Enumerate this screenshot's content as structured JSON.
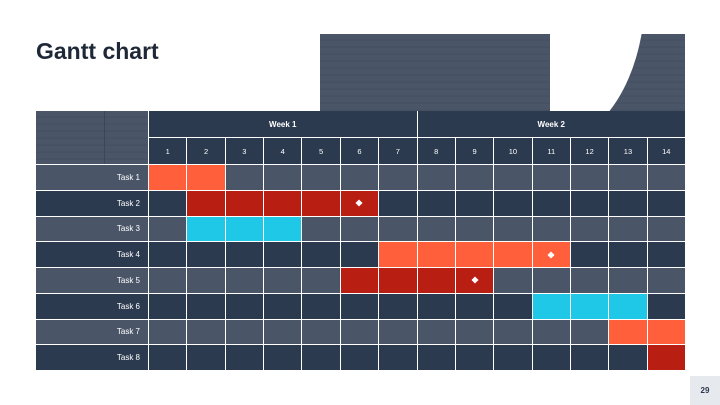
{
  "title": "Gantt chart",
  "page_number": "29",
  "weeks": [
    {
      "label": "Week 1",
      "days": 7
    },
    {
      "label": "Week 2",
      "days": 7
    }
  ],
  "days": [
    "1",
    "2",
    "3",
    "4",
    "5",
    "6",
    "7",
    "8",
    "9",
    "10",
    "11",
    "12",
    "13",
    "14"
  ],
  "colors": {
    "orange": "#ff5f3b",
    "red": "#b81e12",
    "cyan": "#1fc8e6",
    "row_dark": "#2c3a4f",
    "row_light": "#4a5668"
  },
  "chart_data": {
    "type": "gantt",
    "title": "Gantt chart",
    "tasks": [
      {
        "name": "Task 1",
        "start": 1,
        "end": 2,
        "color": "orange",
        "milestone": null
      },
      {
        "name": "Task 2",
        "start": 2,
        "end": 6,
        "color": "red",
        "milestone": 6
      },
      {
        "name": "Task 3",
        "start": 2,
        "end": 4,
        "color": "cyan",
        "milestone": null
      },
      {
        "name": "Task 4",
        "start": 7,
        "end": 11,
        "color": "orange",
        "milestone": 11
      },
      {
        "name": "Task 5",
        "start": 6,
        "end": 9,
        "color": "red",
        "milestone": 9
      },
      {
        "name": "Task 6",
        "start": 11,
        "end": 13,
        "color": "cyan",
        "milestone": null
      },
      {
        "name": "Task 7",
        "start": 13,
        "end": 14,
        "color": "orange",
        "milestone": null
      },
      {
        "name": "Task 8",
        "start": 14,
        "end": 14,
        "color": "red",
        "milestone": null
      }
    ]
  }
}
